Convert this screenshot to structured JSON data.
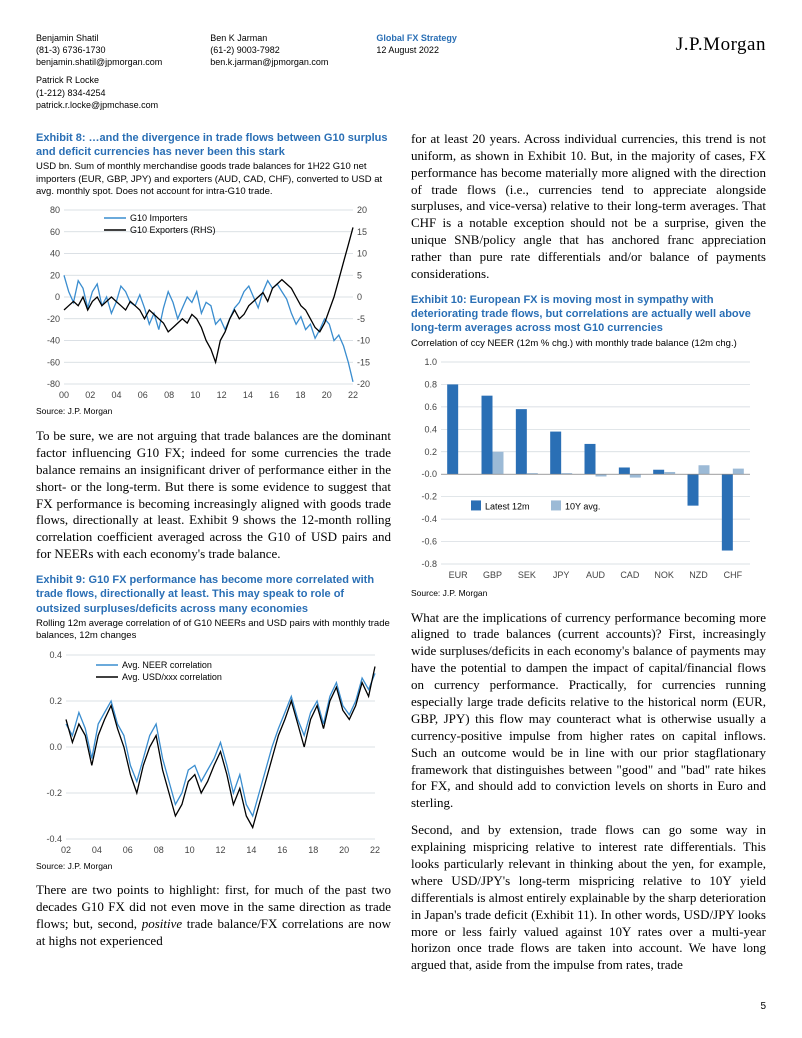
{
  "header": {
    "authors": [
      {
        "name": "Benjamin Shatil",
        "phone": "(81-3) 6736-1730",
        "email": "benjamin.shatil@jpmorgan.com"
      },
      {
        "name": "Ben K Jarman",
        "phone": "(61-2) 9003-7982",
        "email": "ben.k.jarman@jpmorgan.com"
      },
      {
        "name": "Patrick R Locke",
        "phone": "(1-212) 834-4254",
        "email": "patrick.r.locke@jpmchase.com"
      }
    ],
    "strategy": "Global FX Strategy",
    "date": "12 August 2022",
    "logo": "J.P.Morgan"
  },
  "exhibit8": {
    "title": "Exhibit 8: …and the divergence in trade flows between G10 surplus and deficit currencies has never been this stark",
    "sub": "USD bn. Sum of monthly merchandise goods trade balances for 1H22 G10 net importers (EUR, GBP, JPY) and exporters (AUD, CAD, CHF), converted to USD at avg. monthly spot. Does not account for intra-G10 trade.",
    "source": "Source: J.P. Morgan",
    "legend": [
      "G10 Importers",
      "G10 Exporters (RHS)"
    ],
    "legend_colors": [
      "#3a8dcf",
      "#000000"
    ],
    "left_axis": {
      "min": -80,
      "max": 80,
      "step": 20
    },
    "right_axis": {
      "min": -20,
      "max": 20,
      "step": 5
    },
    "x_labels": [
      "00",
      "02",
      "04",
      "06",
      "08",
      "10",
      "12",
      "14",
      "16",
      "18",
      "20",
      "22"
    ],
    "importers": [
      20,
      5,
      -5,
      15,
      8,
      -10,
      5,
      12,
      -8,
      0,
      -15,
      -5,
      10,
      5,
      -5,
      -8,
      2,
      -10,
      -25,
      -15,
      -30,
      -10,
      5,
      -5,
      -20,
      -10,
      0,
      -5,
      5,
      -15,
      -5,
      -8,
      -25,
      -20,
      -30,
      -20,
      -10,
      -5,
      5,
      10,
      0,
      -10,
      5,
      15,
      8,
      12,
      5,
      -2,
      -15,
      -25,
      -18,
      -30,
      -25,
      -38,
      -30,
      -20,
      -25,
      -40,
      -35,
      -45,
      -60,
      -78
    ],
    "exporters": [
      -3,
      -2,
      -1,
      -2,
      0,
      -3,
      -1,
      0,
      -2,
      -1,
      0,
      -1,
      -2,
      -3,
      -1,
      -2,
      -3,
      -5,
      -3,
      -4,
      -5,
      -6,
      -8,
      -7,
      -6,
      -5,
      -6,
      -4,
      -5,
      -7,
      -10,
      -12,
      -15,
      -10,
      -8,
      -5,
      -3,
      -5,
      -4,
      -2,
      -1,
      0,
      1,
      -1,
      2,
      3,
      4,
      3,
      2,
      0,
      -2,
      -3,
      -5,
      -7,
      -8,
      -6,
      -3,
      0,
      4,
      8,
      12,
      16
    ],
    "bg": "#ffffff",
    "grid": "#cfd6dc"
  },
  "para1": "To be sure, we are not arguing that trade balances are the dominant factor influencing G10 FX; indeed for some currencies the trade balance remains an insignificant driver of performance either in the short- or the long-term. But there is some evidence to suggest that FX performance is becoming increasingly aligned with goods trade flows, directionally at least. Exhibit 9 shows the 12-month rolling correlation coefficient averaged across the G10 of USD pairs and for NEERs with each economy's trade balance.",
  "exhibit9": {
    "title": "Exhibit 9: G10 FX performance has become more correlated with trade flows, directionally at least. This may speak to role of outsized surpluses/deficits across many economies",
    "sub": "Rolling 12m average correlation of of G10 NEERs and USD pairs with monthly trade balances, 12m changes",
    "source": "Source: J.P. Morgan",
    "legend": [
      "Avg. NEER correlation",
      "Avg. USD/xxx correlation"
    ],
    "legend_colors": [
      "#3a8dcf",
      "#000000"
    ],
    "y_axis": {
      "min": -0.4,
      "max": 0.4,
      "step": 0.2
    },
    "x_labels": [
      "02",
      "04",
      "06",
      "08",
      "10",
      "12",
      "14",
      "16",
      "18",
      "20",
      "22"
    ],
    "neer": [
      0.1,
      0.05,
      0.15,
      0.08,
      -0.05,
      0.1,
      0.15,
      0.2,
      0.1,
      0.05,
      -0.08,
      -0.15,
      -0.05,
      0.05,
      0.1,
      -0.05,
      -0.15,
      -0.25,
      -0.2,
      -0.1,
      -0.08,
      -0.15,
      -0.1,
      -0.05,
      0.02,
      -0.08,
      -0.2,
      -0.12,
      -0.25,
      -0.3,
      -0.2,
      -0.1,
      0.0,
      0.08,
      0.15,
      0.22,
      0.12,
      0.05,
      0.15,
      0.2,
      0.1,
      0.22,
      0.28,
      0.18,
      0.14,
      0.2,
      0.3,
      0.25,
      0.32
    ],
    "usd": [
      0.12,
      0.02,
      0.1,
      0.05,
      -0.08,
      0.05,
      0.12,
      0.18,
      0.08,
      0.0,
      -0.12,
      -0.2,
      -0.08,
      0.0,
      0.05,
      -0.1,
      -0.2,
      -0.3,
      -0.25,
      -0.15,
      -0.12,
      -0.2,
      -0.15,
      -0.08,
      -0.02,
      -0.12,
      -0.25,
      -0.18,
      -0.3,
      -0.35,
      -0.25,
      -0.15,
      -0.05,
      0.05,
      0.12,
      0.2,
      0.1,
      0.0,
      0.12,
      0.18,
      0.08,
      0.2,
      0.26,
      0.16,
      0.12,
      0.18,
      0.28,
      0.22,
      0.35
    ],
    "bg": "#ffffff",
    "grid": "#cfd6dc"
  },
  "para2a": "There are two points to highlight: first, for much of the past two decades G10 FX did not even move in the same direction as trade flows; but, second, ",
  "para2b": "positive",
  "para2c": " trade balance/FX correlations are now at highs not experienced",
  "para3": "for at least 20 years. Across individual currencies, this trend is not uniform, as shown in Exhibit 10. But, in the majority of cases, FX performance has become materially more aligned with the direction of trade flows (i.e., currencies tend to appreciate alongside surpluses, and vice-versa) relative to their long-term averages. That CHF is a notable exception should not be a surprise, given the unique SNB/policy angle that has anchored franc appreciation rather than pure rate differentials and/or balance of payments considerations.",
  "exhibit10": {
    "title": "Exhibit 10: European FX is moving most in sympathy with deteriorating trade flows, but correlations are actually well above long-term averages across most G10 currencies",
    "sub": "Correlation of ccy NEER (12m % chg.) with monthly trade balance (12m chg.)",
    "source": "Source: J.P. Morgan",
    "legend": [
      "Latest 12m",
      "10Y avg."
    ],
    "legend_colors": [
      "#2a6fb5",
      "#9cbad6"
    ],
    "y_axis": {
      "min": -0.8,
      "max": 1.0,
      "step": 0.2
    },
    "categories": [
      "EUR",
      "GBP",
      "SEK",
      "JPY",
      "AUD",
      "CAD",
      "NOK",
      "NZD",
      "CHF"
    ],
    "latest": [
      0.8,
      0.7,
      0.58,
      0.38,
      0.27,
      0.06,
      0.04,
      -0.28,
      -0.68
    ],
    "avg10y": [
      0.0,
      0.2,
      0.01,
      0.01,
      -0.02,
      -0.03,
      0.02,
      0.08,
      0.05
    ],
    "bg": "#ffffff",
    "grid": "#cfd6dc"
  },
  "para4": "What are the implications of currency performance becoming more aligned to trade balances (current accounts)? First, increasingly wide surpluses/deficits in each economy's balance of payments may have the potential to dampen the impact of capital/financial flows on currency performance. Practically, for currencies running especially large trade deficits relative to the historical norm (EUR, GBP, JPY) this flow may counteract what is otherwise usually a currency-positive impulse from higher rates on capital inflows. Such an outcome would be in line with our prior stagflationary framework that distinguishes between \"good\" and \"bad\" rate hikes for FX, and should add to conviction levels on shorts in Euro and sterling.",
  "para5": "Second, and by extension, trade flows can go some way in explaining mispricing relative to interest rate differentials. This looks particularly relevant in thinking about the yen, for example, where USD/JPY's long-term mispricing relative to 10Y yield differentials is almost entirely explainable by the sharp deterioration in Japan's trade deficit (Exhibit 11). In other words, USD/JPY looks more or less fairly valued against 10Y rates over a multi-year horizon once trade flows are taken into account. We have long argued that, aside from the impulse from rates, trade",
  "page": "5"
}
